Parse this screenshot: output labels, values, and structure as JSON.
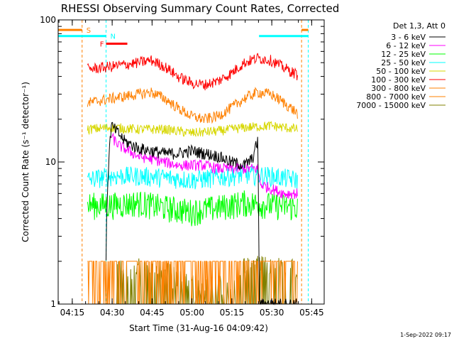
{
  "chart_data": {
    "type": "line",
    "title": "RHESSI Observing Summary Count Rates, Corrected",
    "xlabel": "Start Time (31-Aug-16 04:09:42)",
    "ylabel": "Corrected Count Rate (s⁻¹ detector⁻¹)",
    "yscale": "log",
    "ylim": [
      1,
      100
    ],
    "xlim_minutes": [
      0,
      100
    ],
    "x_ticks": [
      "04:15",
      "04:30",
      "04:45",
      "05:00",
      "05:15",
      "05:30",
      "05:45"
    ],
    "x_tick_minutes": [
      5.3,
      20.3,
      35.3,
      50.3,
      65.3,
      80.3,
      95.3
    ],
    "y_ticks": [
      "1",
      "10",
      "100"
    ],
    "y_tick_values": [
      1,
      10,
      100
    ],
    "legend_header": "Det 1,3, Att 0",
    "legend_position": "top-right",
    "date_stamp": "1-Sep-2022 09:17",
    "flags": [
      {
        "label": "S",
        "color": "#ff8000",
        "x_start": 0,
        "x_end": 9,
        "y_value": 85
      },
      {
        "label": "N",
        "color": "#00ffff",
        "x_start": 0,
        "x_end": 18,
        "y_value": 77
      },
      {
        "label": "F",
        "color": "#ff0000",
        "x_start": 18,
        "x_end": 26,
        "y_value": 68
      },
      {
        "label": "",
        "color": "#00ffff",
        "x_start": 75.5,
        "x_end": 94,
        "y_value": 77
      },
      {
        "label": "",
        "color": "#ff8000",
        "x_start": 91.5,
        "x_end": 94,
        "y_value": 85
      }
    ],
    "vlines": [
      {
        "x": 9.0,
        "color": "#ff8000"
      },
      {
        "x": 18.0,
        "color": "#00ffff"
      },
      {
        "x": 91.5,
        "color": "#ff8000"
      },
      {
        "x": 94.0,
        "color": "#00ffff"
      }
    ],
    "series": [
      {
        "name": "3 - 6 keV",
        "color": "#000000",
        "x": [
          18,
          20,
          25,
          30,
          35,
          40,
          45,
          50,
          55,
          60,
          65,
          70,
          73,
          75,
          75.5,
          80,
          85,
          90
        ],
        "values": [
          2.0,
          18.0,
          14.0,
          12.5,
          12.0,
          11.5,
          11.5,
          12.0,
          11.5,
          11.0,
          10.0,
          9.5,
          10.5,
          14.0,
          1.0,
          1.0,
          1.0,
          1.0
        ]
      },
      {
        "name": "6 - 12 keV",
        "color": "#ff00ff",
        "x": [
          20,
          23,
          30,
          35,
          40,
          45,
          50,
          55,
          60,
          65,
          70,
          75,
          76,
          80,
          85,
          90
        ],
        "values": [
          15.0,
          13.0,
          11.0,
          10.5,
          10.0,
          9.5,
          9.5,
          9.5,
          9.0,
          9.0,
          9.0,
          9.0,
          7.0,
          6.5,
          6.0,
          6.0
        ]
      },
      {
        "name": "12 - 25 keV",
        "color": "#00ff00",
        "x": [
          11,
          20,
          30,
          40,
          50,
          60,
          70,
          80,
          90
        ],
        "values": [
          5.0,
          5.0,
          5.2,
          4.8,
          4.5,
          4.8,
          5.2,
          5.0,
          4.8
        ]
      },
      {
        "name": "25 - 50 keV",
        "color": "#00ffff",
        "x": [
          11,
          20,
          30,
          40,
          50,
          60,
          70,
          80,
          90
        ],
        "values": [
          7.5,
          8.0,
          8.0,
          7.8,
          7.5,
          7.8,
          8.2,
          8.0,
          7.5
        ]
      },
      {
        "name": "50 - 100 keV",
        "color": "#d7d700",
        "x": [
          11,
          20,
          30,
          40,
          50,
          60,
          70,
          80,
          90
        ],
        "values": [
          17.0,
          17.5,
          17.0,
          17.0,
          16.0,
          16.5,
          17.5,
          18.0,
          17.0
        ]
      },
      {
        "name": "100 - 300 keV",
        "color": "#ff0000",
        "x": [
          11,
          20,
          30,
          35,
          40,
          45,
          50,
          55,
          60,
          65,
          70,
          75,
          80,
          85,
          90
        ],
        "values": [
          45,
          47,
          50,
          52,
          47,
          40,
          36,
          35,
          37,
          42,
          50,
          54,
          52,
          46,
          41
        ]
      },
      {
        "name": "300 - 800 keV",
        "color": "#ff8000",
        "x": [
          11,
          20,
          30,
          35,
          40,
          45,
          50,
          55,
          60,
          65,
          70,
          75,
          80,
          85,
          90
        ],
        "values": [
          26,
          28,
          30,
          31,
          28,
          24,
          21,
          20,
          21,
          24,
          28,
          31,
          30,
          26,
          22
        ]
      },
      {
        "name": "800 - 7000 keV",
        "color": "#ff8000",
        "x": [
          11,
          20,
          30,
          40,
          50,
          60,
          70,
          80,
          90
        ],
        "values": [
          2.0,
          2.0,
          2.0,
          2.0,
          2.0,
          2.0,
          2.0,
          2.0,
          2.0
        ]
      },
      {
        "name": "7000 - 15000 keV",
        "color": "#808000",
        "x": [
          22,
          30,
          40,
          50,
          60,
          65,
          70,
          75,
          80,
          85,
          90
        ],
        "values": [
          1.5,
          1.5,
          1.4,
          1.0,
          1.0,
          1.0,
          1.6,
          1.6,
          1.6,
          1.5,
          1.5
        ]
      }
    ]
  }
}
